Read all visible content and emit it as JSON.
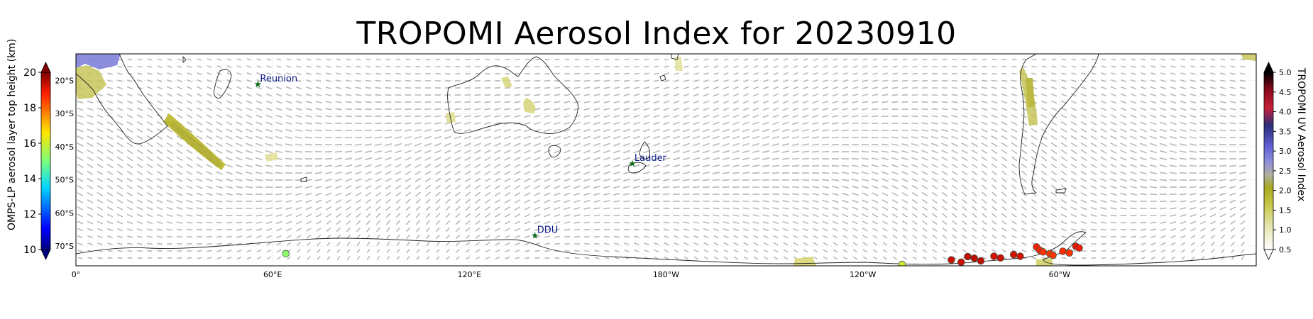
{
  "title": "TROPOMI Aerosol Index for 20230910",
  "left_colorbar": {
    "label": "OMPS-LP aerosol layer top height (km)",
    "ticks": [
      "20",
      "18",
      "16",
      "14",
      "12",
      "10"
    ],
    "range": [
      10,
      20
    ]
  },
  "right_colorbar": {
    "label": "TROPOMI UV Aerosol Index",
    "ticks": [
      "5.0",
      "4.5",
      "4.0",
      "3.5",
      "3.0",
      "2.5",
      "2.0",
      "1.5",
      "1.0",
      "0.5"
    ],
    "range": [
      0.5,
      5.0
    ]
  },
  "map": {
    "lat_labels": [
      "20°S",
      "30°S",
      "40°S",
      "50°S",
      "60°S",
      "70°S"
    ],
    "lon_labels": [
      "0°",
      "60°E",
      "120°E",
      "180°W",
      "120°W",
      "60°W"
    ],
    "stations": [
      {
        "name": "Reunion",
        "lon": 55.5,
        "lat": -21.0
      },
      {
        "name": "Lauder",
        "lon": 169.7,
        "lat": -45.0
      },
      {
        "name": "DDU",
        "lon": 140.0,
        "lat": -66.7
      }
    ],
    "lat_range": [
      -76,
      -12
    ],
    "lon_range": [
      0,
      360
    ]
  },
  "omps_points": [
    {
      "lon": 64,
      "lat": -72.3,
      "height_km": 15.2
    },
    {
      "lon": 252,
      "lat": -75.6,
      "height_km": 16.0
    },
    {
      "lon": 267,
      "lat": -74.2,
      "height_km": 19.3
    },
    {
      "lon": 270,
      "lat": -74.9,
      "height_km": 19.3
    },
    {
      "lon": 272,
      "lat": -73.2,
      "height_km": 19.4
    },
    {
      "lon": 274,
      "lat": -73.7,
      "height_km": 19.4
    },
    {
      "lon": 276,
      "lat": -74.5,
      "height_km": 19.4
    },
    {
      "lon": 280,
      "lat": -73.1,
      "height_km": 19.2
    },
    {
      "lon": 282,
      "lat": -73.6,
      "height_km": 19.3
    },
    {
      "lon": 286,
      "lat": -72.6,
      "height_km": 19.2
    },
    {
      "lon": 288,
      "lat": -73.1,
      "height_km": 19.2
    },
    {
      "lon": 293,
      "lat": -70.3,
      "height_km": 18.8
    },
    {
      "lon": 294,
      "lat": -71.3,
      "height_km": 18.7
    },
    {
      "lon": 295,
      "lat": -71.8,
      "height_km": 18.6
    },
    {
      "lon": 297,
      "lat": -72.3,
      "height_km": 18.5
    },
    {
      "lon": 298,
      "lat": -72.8,
      "height_km": 18.5
    },
    {
      "lon": 301,
      "lat": -71.6,
      "height_km": 18.6
    },
    {
      "lon": 303,
      "lat": -72.1,
      "height_km": 18.6
    },
    {
      "lon": 305,
      "lat": -70.1,
      "height_km": 19.0
    },
    {
      "lon": 306,
      "lat": -70.6,
      "height_km": 18.9
    }
  ]
}
